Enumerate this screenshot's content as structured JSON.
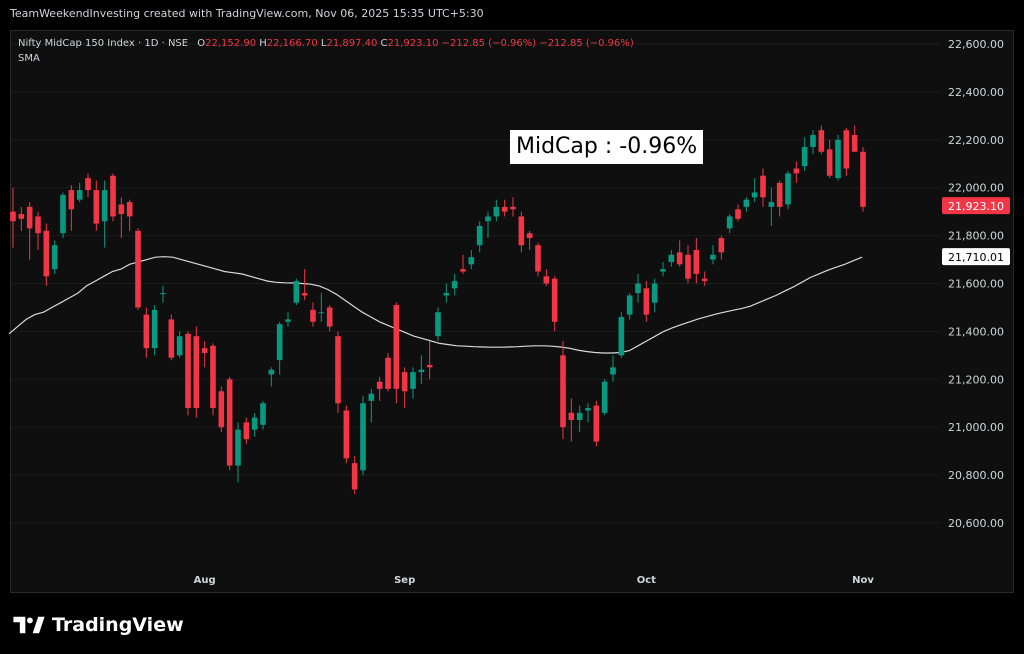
{
  "header": {
    "attribution": "TeamWeekendInvesting created with TradingView.com, Nov 06, 2025 15:35 UTC+5:30"
  },
  "legend": {
    "symbol": "Nifty MidCap 150 Index · 1D · NSE",
    "o_label": "O",
    "o_value": "22,152.90",
    "h_label": "H",
    "h_value": "22,166.70",
    "l_label": "L",
    "l_value": "21,897.40",
    "c_label": "C",
    "c_value": "21,923.10",
    "change": "−212.85 (−0.96%)",
    "change2": "−212.85 (−0.96%)",
    "indicator": "SMA"
  },
  "annotation": "MidCap : -0.96%",
  "brand": {
    "name": "TradingView",
    "icon": "tradingview-logo-icon"
  },
  "colors": {
    "up": "#089981",
    "down": "#f23645",
    "sma": "#d9d9d9",
    "background": "#0f0f0f",
    "grid": "#1c1c1c"
  },
  "chart_data": {
    "type": "candlestick",
    "ylim": [
      20500,
      22700
    ],
    "y_ticks": [
      "20,600.00",
      "20,800.00",
      "21,000.00",
      "21,200.00",
      "21,400.00",
      "21,600.00",
      "21,800.00",
      "22,000.00",
      "22,200.00",
      "22,400.00",
      "22,600.00"
    ],
    "y_tick_values": [
      20600,
      20800,
      21000,
      21200,
      21400,
      21600,
      21800,
      22000,
      22200,
      22400,
      22600
    ],
    "x_labels": [
      {
        "label": "Aug",
        "index": 23
      },
      {
        "label": "Sep",
        "index": 47
      },
      {
        "label": "Oct",
        "index": 76
      },
      {
        "label": "Nov",
        "index": 102
      }
    ],
    "last_price_label": "21,923.10",
    "last_price": 21923.1,
    "sma_label": "21,710.01",
    "sma_last": 21710.01,
    "candles": [
      {
        "o": 21900,
        "h": 22000,
        "l": 21750,
        "c": 21860
      },
      {
        "o": 21890,
        "h": 21920,
        "l": 21820,
        "c": 21870
      },
      {
        "o": 21920,
        "h": 21940,
        "l": 21700,
        "c": 21830
      },
      {
        "o": 21880,
        "h": 21900,
        "l": 21740,
        "c": 21810
      },
      {
        "o": 21820,
        "h": 21850,
        "l": 21590,
        "c": 21630
      },
      {
        "o": 21660,
        "h": 21780,
        "l": 21640,
        "c": 21760
      },
      {
        "o": 21810,
        "h": 21980,
        "l": 21790,
        "c": 21970
      },
      {
        "o": 21990,
        "h": 22010,
        "l": 21820,
        "c": 21910
      },
      {
        "o": 21950,
        "h": 22020,
        "l": 21940,
        "c": 21990
      },
      {
        "o": 22040,
        "h": 22060,
        "l": 21960,
        "c": 21990
      },
      {
        "o": 21990,
        "h": 22030,
        "l": 21820,
        "c": 21850
      },
      {
        "o": 21860,
        "h": 22030,
        "l": 21750,
        "c": 21990
      },
      {
        "o": 22050,
        "h": 22060,
        "l": 21860,
        "c": 21880
      },
      {
        "o": 21930,
        "h": 21960,
        "l": 21790,
        "c": 21890
      },
      {
        "o": 21940,
        "h": 21950,
        "l": 21820,
        "c": 21880
      },
      {
        "o": 21820,
        "h": 21830,
        "l": 21490,
        "c": 21500
      },
      {
        "o": 21470,
        "h": 21500,
        "l": 21290,
        "c": 21330
      },
      {
        "o": 21330,
        "h": 21510,
        "l": 21300,
        "c": 21490
      },
      {
        "o": 21560,
        "h": 21590,
        "l": 21520,
        "c": 21560
      },
      {
        "o": 21450,
        "h": 21470,
        "l": 21280,
        "c": 21290
      },
      {
        "o": 21300,
        "h": 21400,
        "l": 21290,
        "c": 21380
      },
      {
        "o": 21390,
        "h": 21400,
        "l": 21050,
        "c": 21080
      },
      {
        "o": 21380,
        "h": 21420,
        "l": 21040,
        "c": 21080
      },
      {
        "o": 21330,
        "h": 21360,
        "l": 21250,
        "c": 21310
      },
      {
        "o": 21340,
        "h": 21350,
        "l": 21050,
        "c": 21080
      },
      {
        "o": 21150,
        "h": 21170,
        "l": 20980,
        "c": 21000
      },
      {
        "o": 21200,
        "h": 21210,
        "l": 20820,
        "c": 20840
      },
      {
        "o": 20840,
        "h": 21020,
        "l": 20770,
        "c": 20990
      },
      {
        "o": 21020,
        "h": 21040,
        "l": 20930,
        "c": 20950
      },
      {
        "o": 20990,
        "h": 21060,
        "l": 20960,
        "c": 21040
      },
      {
        "o": 21010,
        "h": 21110,
        "l": 20990,
        "c": 21100
      },
      {
        "o": 21220,
        "h": 21250,
        "l": 21170,
        "c": 21240
      },
      {
        "o": 21280,
        "h": 21440,
        "l": 21220,
        "c": 21430
      },
      {
        "o": 21440,
        "h": 21480,
        "l": 21420,
        "c": 21450
      },
      {
        "o": 21520,
        "h": 21620,
        "l": 21510,
        "c": 21610
      },
      {
        "o": 21560,
        "h": 21660,
        "l": 21530,
        "c": 21550
      },
      {
        "o": 21490,
        "h": 21520,
        "l": 21420,
        "c": 21440
      },
      {
        "o": 21480,
        "h": 21560,
        "l": 21440,
        "c": 21480
      },
      {
        "o": 21500,
        "h": 21510,
        "l": 21400,
        "c": 21420
      },
      {
        "o": 21380,
        "h": 21400,
        "l": 21060,
        "c": 21100
      },
      {
        "o": 21070,
        "h": 21090,
        "l": 20850,
        "c": 20870
      },
      {
        "o": 20850,
        "h": 20880,
        "l": 20720,
        "c": 20740
      },
      {
        "o": 20820,
        "h": 21130,
        "l": 20800,
        "c": 21100
      },
      {
        "o": 21110,
        "h": 21160,
        "l": 21020,
        "c": 21140
      },
      {
        "o": 21190,
        "h": 21210,
        "l": 21110,
        "c": 21160
      },
      {
        "o": 21290,
        "h": 21310,
        "l": 21150,
        "c": 21160
      },
      {
        "o": 21510,
        "h": 21520,
        "l": 21100,
        "c": 21160
      },
      {
        "o": 21230,
        "h": 21250,
        "l": 21080,
        "c": 21150
      },
      {
        "o": 21160,
        "h": 21250,
        "l": 21120,
        "c": 21230
      },
      {
        "o": 21230,
        "h": 21300,
        "l": 21180,
        "c": 21240
      },
      {
        "o": 21260,
        "h": 21360,
        "l": 21200,
        "c": 21250
      },
      {
        "o": 21380,
        "h": 21500,
        "l": 21360,
        "c": 21480
      },
      {
        "o": 21550,
        "h": 21600,
        "l": 21520,
        "c": 21560
      },
      {
        "o": 21580,
        "h": 21640,
        "l": 21550,
        "c": 21610
      },
      {
        "o": 21660,
        "h": 21720,
        "l": 21640,
        "c": 21650
      },
      {
        "o": 21680,
        "h": 21740,
        "l": 21660,
        "c": 21710
      },
      {
        "o": 21760,
        "h": 21860,
        "l": 21730,
        "c": 21840
      },
      {
        "o": 21860,
        "h": 21900,
        "l": 21790,
        "c": 21880
      },
      {
        "o": 21880,
        "h": 21950,
        "l": 21860,
        "c": 21920
      },
      {
        "o": 21920,
        "h": 21950,
        "l": 21880,
        "c": 21900
      },
      {
        "o": 21920,
        "h": 21960,
        "l": 21880,
        "c": 21910
      },
      {
        "o": 21880,
        "h": 21900,
        "l": 21730,
        "c": 21760
      },
      {
        "o": 21810,
        "h": 21820,
        "l": 21740,
        "c": 21790
      },
      {
        "o": 21760,
        "h": 21770,
        "l": 21630,
        "c": 21650
      },
      {
        "o": 21630,
        "h": 21660,
        "l": 21590,
        "c": 21600
      },
      {
        "o": 21620,
        "h": 21630,
        "l": 21400,
        "c": 21440
      },
      {
        "o": 21300,
        "h": 21360,
        "l": 20950,
        "c": 21000
      },
      {
        "o": 21060,
        "h": 21120,
        "l": 20940,
        "c": 21030
      },
      {
        "o": 21030,
        "h": 21090,
        "l": 20980,
        "c": 21060
      },
      {
        "o": 21070,
        "h": 21100,
        "l": 21020,
        "c": 21080
      },
      {
        "o": 21090,
        "h": 21110,
        "l": 20920,
        "c": 20940
      },
      {
        "o": 21060,
        "h": 21200,
        "l": 21050,
        "c": 21190
      },
      {
        "o": 21220,
        "h": 21300,
        "l": 21190,
        "c": 21250
      },
      {
        "o": 21300,
        "h": 21480,
        "l": 21290,
        "c": 21460
      },
      {
        "o": 21470,
        "h": 21560,
        "l": 21450,
        "c": 21550
      },
      {
        "o": 21560,
        "h": 21640,
        "l": 21520,
        "c": 21600
      },
      {
        "o": 21580,
        "h": 21610,
        "l": 21440,
        "c": 21470
      },
      {
        "o": 21520,
        "h": 21620,
        "l": 21480,
        "c": 21600
      },
      {
        "o": 21650,
        "h": 21690,
        "l": 21630,
        "c": 21660
      },
      {
        "o": 21690,
        "h": 21740,
        "l": 21670,
        "c": 21720
      },
      {
        "o": 21730,
        "h": 21780,
        "l": 21670,
        "c": 21680
      },
      {
        "o": 21720,
        "h": 21760,
        "l": 21600,
        "c": 21620
      },
      {
        "o": 21740,
        "h": 21790,
        "l": 21600,
        "c": 21640
      },
      {
        "o": 21620,
        "h": 21650,
        "l": 21590,
        "c": 21610
      },
      {
        "o": 21700,
        "h": 21760,
        "l": 21680,
        "c": 21720
      },
      {
        "o": 21790,
        "h": 21800,
        "l": 21700,
        "c": 21730
      },
      {
        "o": 21830,
        "h": 21890,
        "l": 21810,
        "c": 21880
      },
      {
        "o": 21910,
        "h": 21930,
        "l": 21860,
        "c": 21870
      },
      {
        "o": 21920,
        "h": 21960,
        "l": 21900,
        "c": 21950
      },
      {
        "o": 21960,
        "h": 22040,
        "l": 21940,
        "c": 21980
      },
      {
        "o": 22050,
        "h": 22080,
        "l": 21920,
        "c": 21960
      },
      {
        "o": 21920,
        "h": 22000,
        "l": 21840,
        "c": 21940
      },
      {
        "o": 22020,
        "h": 22030,
        "l": 21880,
        "c": 21920
      },
      {
        "o": 21930,
        "h": 22070,
        "l": 21910,
        "c": 22060
      },
      {
        "o": 22080,
        "h": 22110,
        "l": 22020,
        "c": 22060
      },
      {
        "o": 22090,
        "h": 22210,
        "l": 22070,
        "c": 22170
      },
      {
        "o": 22170,
        "h": 22240,
        "l": 22140,
        "c": 22220
      },
      {
        "o": 22240,
        "h": 22260,
        "l": 22140,
        "c": 22150
      },
      {
        "o": 22160,
        "h": 22200,
        "l": 22040,
        "c": 22050
      },
      {
        "o": 22040,
        "h": 22220,
        "l": 22030,
        "c": 22200
      },
      {
        "o": 22240,
        "h": 22250,
        "l": 22050,
        "c": 22080
      },
      {
        "o": 22220,
        "h": 22260,
        "l": 22150,
        "c": 22150
      },
      {
        "o": 22150,
        "h": 22170,
        "l": 21900,
        "c": 21920
      }
    ],
    "sma": [
      21390,
      21420,
      21450,
      21470,
      21480,
      21500,
      21520,
      21540,
      21560,
      21590,
      21610,
      21630,
      21650,
      21660,
      21680,
      21690,
      21700,
      21710,
      21712,
      21710,
      21700,
      21690,
      21680,
      21670,
      21660,
      21650,
      21645,
      21640,
      21630,
      21620,
      21610,
      21605,
      21603,
      21602,
      21600,
      21597,
      21590,
      21575,
      21555,
      21530,
      21505,
      21480,
      21460,
      21440,
      21425,
      21410,
      21395,
      21380,
      21370,
      21360,
      21350,
      21345,
      21340,
      21338,
      21336,
      21335,
      21334,
      21334,
      21335,
      21336,
      21338,
      21340,
      21340,
      21338,
      21335,
      21330,
      21322,
      21316,
      21312,
      21310,
      21310,
      21312,
      21320,
      21340,
      21360,
      21380,
      21400,
      21415,
      21428,
      21440,
      21452,
      21462,
      21472,
      21480,
      21488,
      21495,
      21505,
      21520,
      21535,
      21550,
      21568,
      21585,
      21605,
      21625,
      21640,
      21655,
      21668,
      21680,
      21695,
      21710
    ]
  }
}
